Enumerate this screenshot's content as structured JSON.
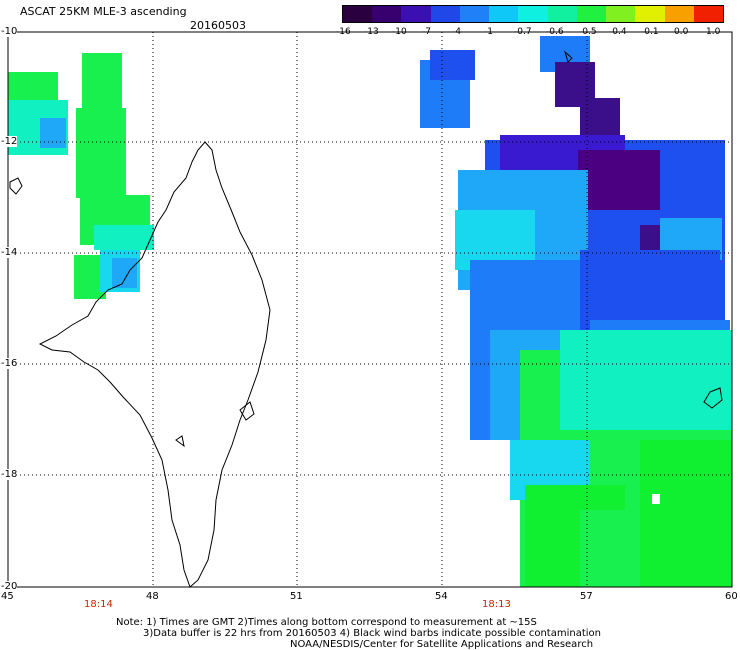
{
  "header": {
    "title": "ASCAT 25KM MLE-3 ascending",
    "date": "20160503"
  },
  "colorbar": {
    "ticks": [
      "-16",
      "-13",
      "-10",
      "-7",
      "-4",
      "-1",
      "-0.7",
      "-0.6",
      "-0.5",
      "-0.4",
      "-0.1",
      "0.0",
      "1.0"
    ],
    "colors": [
      "#2a0040",
      "#38006f",
      "#3a10b0",
      "#2048e8",
      "#2080f8",
      "#10c8f8",
      "#10f0e0",
      "#10f0a0",
      "#20f040",
      "#80f020",
      "#e0f000",
      "#f8a000",
      "#f02000"
    ]
  },
  "axes": {
    "lat_labels": [
      "-10",
      "-12",
      "-14",
      "-16",
      "-18",
      "-20"
    ],
    "lon_labels": [
      "45",
      "48",
      "51",
      "54",
      "57",
      "60"
    ]
  },
  "pass_times": [
    "18:14",
    "18:13"
  ],
  "notes": [
    "Note: 1) Times are GMT 2)Times along bottom correspond to measurement at ~15S",
    "3)Data buffer is 22 hrs from 20160503 4) Black wind barbs indicate possible contamination",
    "NOAA/NESDIS/Center for Satellite Applications and Research"
  ],
  "palette": {
    "deep_purple": "#4a0080",
    "dark_purple": "#3b0f8a",
    "indigo": "#3a1ad0",
    "blue": "#1e50f0",
    "mid_blue": "#1e7cf8",
    "light_blue": "#20a8f8",
    "cyan": "#18d8f0",
    "aqua": "#10f0c0",
    "green": "#18f050",
    "bright_green": "#10f030",
    "time_label": "#cc2200"
  }
}
